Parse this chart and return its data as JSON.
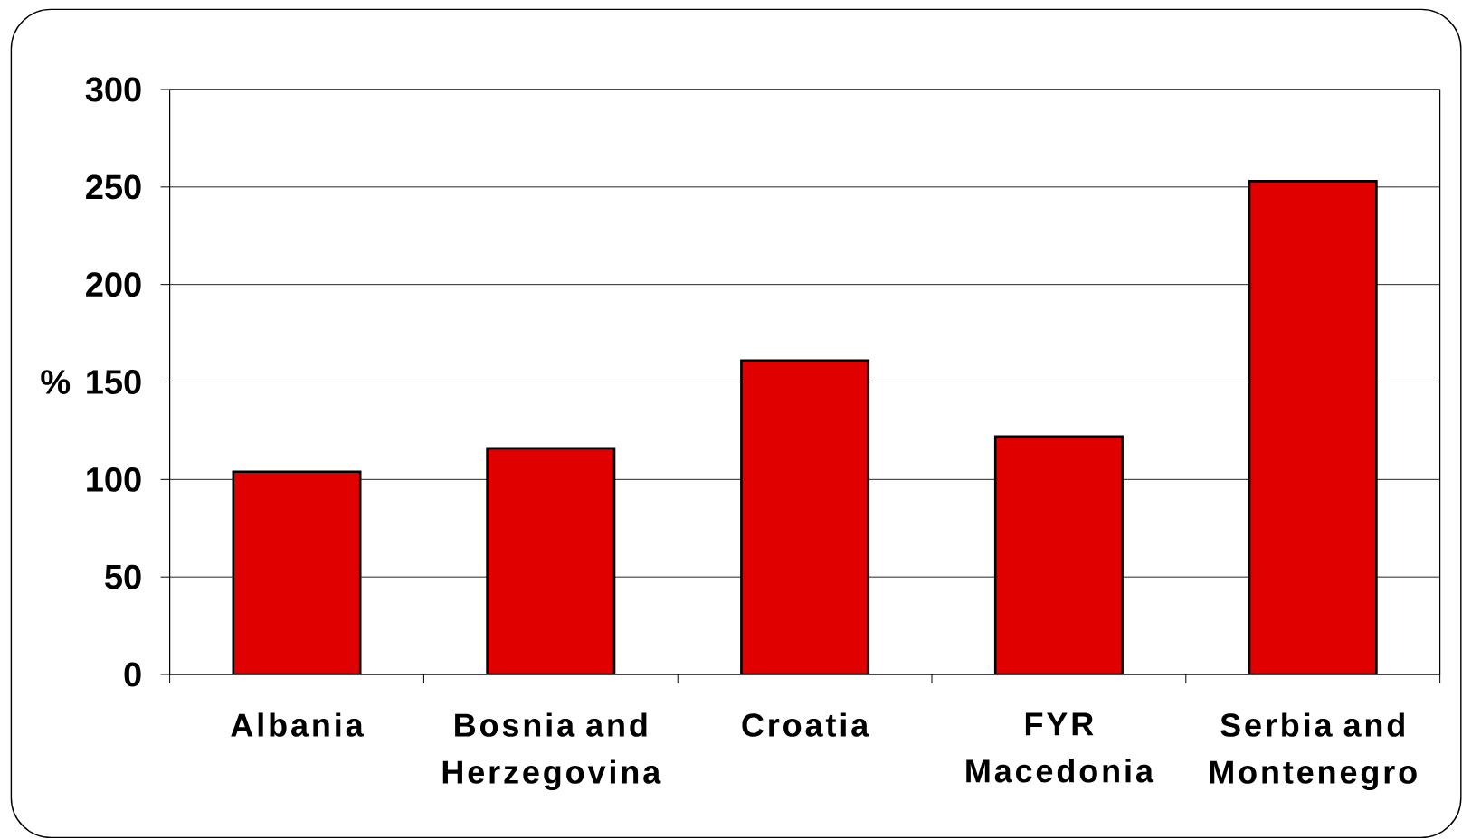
{
  "chart_data": {
    "type": "bar",
    "ylabel": "%",
    "categories": [
      "Albania",
      "Bosnia and Herzegovina",
      "Croatia",
      "FYR Macedonia",
      "Serbia and Montenegro"
    ],
    "values": [
      104,
      116,
      161,
      122,
      253
    ],
    "color": "#e00000",
    "ylim": [
      0,
      300
    ],
    "yticks": [
      0,
      50,
      100,
      150,
      200,
      250,
      300
    ],
    "grid": "y"
  }
}
